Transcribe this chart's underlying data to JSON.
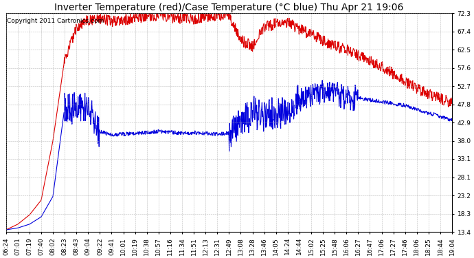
{
  "title": "Inverter Temperature (red)/Case Temperature (°C blue) Thu Apr 21 19:06",
  "copyright": "Copyright 2011 Cartronics.com",
  "yticks": [
    13.4,
    18.3,
    23.2,
    28.1,
    33.1,
    38.0,
    42.9,
    47.8,
    52.7,
    57.6,
    62.5,
    67.4,
    72.3
  ],
  "ymin": 13.4,
  "ymax": 72.3,
  "xtick_labels": [
    "06:24",
    "07:01",
    "07:19",
    "07:40",
    "08:02",
    "08:23",
    "08:43",
    "09:04",
    "09:22",
    "09:41",
    "10:01",
    "10:19",
    "10:38",
    "10:57",
    "11:16",
    "11:34",
    "11:51",
    "12:13",
    "12:31",
    "12:49",
    "13:08",
    "13:28",
    "13:46",
    "14:05",
    "14:24",
    "14:44",
    "15:02",
    "15:25",
    "15:48",
    "16:06",
    "16:27",
    "16:47",
    "17:06",
    "17:27",
    "17:46",
    "18:06",
    "18:25",
    "18:44",
    "19:04"
  ],
  "red_line_color": "#dd0000",
  "blue_line_color": "#0000dd",
  "background_color": "#ffffff",
  "grid_color": "#aaaaaa",
  "title_fontsize": 10,
  "copyright_fontsize": 6.5,
  "tick_fontsize": 6.5,
  "linewidth": 0.8
}
